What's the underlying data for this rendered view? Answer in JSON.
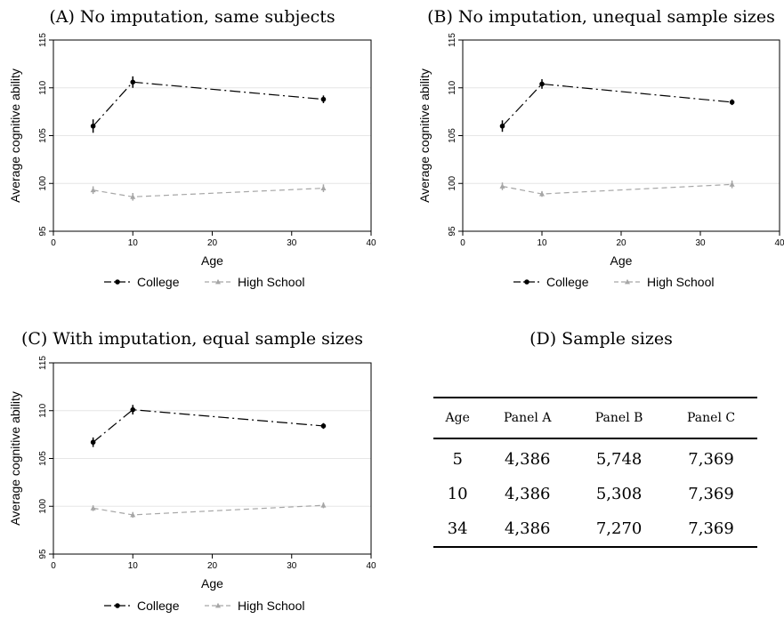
{
  "chart_data": [
    {
      "type": "line",
      "title": "(A) No imputation, same subjects",
      "xlabel": "Age",
      "ylabel": "Average cognitive ability",
      "xlim": [
        0,
        40
      ],
      "ylim": [
        95,
        115
      ],
      "xticks": [
        "0",
        "10",
        "20",
        "30",
        "40"
      ],
      "yticks": [
        "95",
        "100",
        "105",
        "110",
        "115"
      ],
      "grid": true,
      "legend_position": "bottom",
      "series": [
        {
          "name": "College",
          "color": "#000000",
          "x": [
            5,
            10,
            34
          ],
          "y": [
            106.0,
            110.6,
            108.8
          ],
          "err": [
            0.7,
            0.6,
            0.4
          ]
        },
        {
          "name": "High School",
          "color": "#a6a6a6",
          "x": [
            5,
            10,
            34
          ],
          "y": [
            99.3,
            98.6,
            99.5
          ],
          "err": [
            0.4,
            0.4,
            0.4
          ]
        }
      ]
    },
    {
      "type": "line",
      "title": "(B) No imputation, unequal sample sizes",
      "xlabel": "Age",
      "ylabel": "Average cognitive ability",
      "xlim": [
        0,
        40
      ],
      "ylim": [
        95,
        115
      ],
      "xticks": [
        "0",
        "10",
        "20",
        "30",
        "40"
      ],
      "yticks": [
        "95",
        "100",
        "105",
        "110",
        "115"
      ],
      "grid": true,
      "legend_position": "bottom",
      "series": [
        {
          "name": "College",
          "color": "#000000",
          "x": [
            5,
            10,
            34
          ],
          "y": [
            106.0,
            110.4,
            108.5
          ],
          "err": [
            0.6,
            0.5,
            0.3
          ]
        },
        {
          "name": "High School",
          "color": "#a6a6a6",
          "x": [
            5,
            10,
            34
          ],
          "y": [
            99.7,
            98.9,
            99.9
          ],
          "err": [
            0.4,
            0.3,
            0.4
          ]
        }
      ]
    },
    {
      "type": "line",
      "title": "(C) With imputation, equal sample sizes",
      "xlabel": "Age",
      "ylabel": "Average cognitive ability",
      "xlim": [
        0,
        40
      ],
      "ylim": [
        95,
        115
      ],
      "xticks": [
        "0",
        "10",
        "20",
        "30",
        "40"
      ],
      "yticks": [
        "95",
        "100",
        "105",
        "110",
        "115"
      ],
      "grid": true,
      "legend_position": "bottom",
      "series": [
        {
          "name": "College",
          "color": "#000000",
          "x": [
            5,
            10,
            34
          ],
          "y": [
            106.7,
            110.1,
            108.4
          ],
          "err": [
            0.5,
            0.5,
            0.3
          ]
        },
        {
          "name": "High School",
          "color": "#a6a6a6",
          "x": [
            5,
            10,
            34
          ],
          "y": [
            99.8,
            99.1,
            100.1
          ],
          "err": [
            0.3,
            0.3,
            0.3
          ]
        }
      ]
    },
    {
      "type": "table",
      "title": "(D) Sample sizes",
      "columns": [
        "Age",
        "Panel A",
        "Panel B",
        "Panel C"
      ],
      "rows": [
        [
          "5",
          "4,386",
          "5,748",
          "7,369"
        ],
        [
          "10",
          "4,386",
          "5,308",
          "7,369"
        ],
        [
          "34",
          "4,386",
          "7,270",
          "7,369"
        ]
      ]
    }
  ]
}
